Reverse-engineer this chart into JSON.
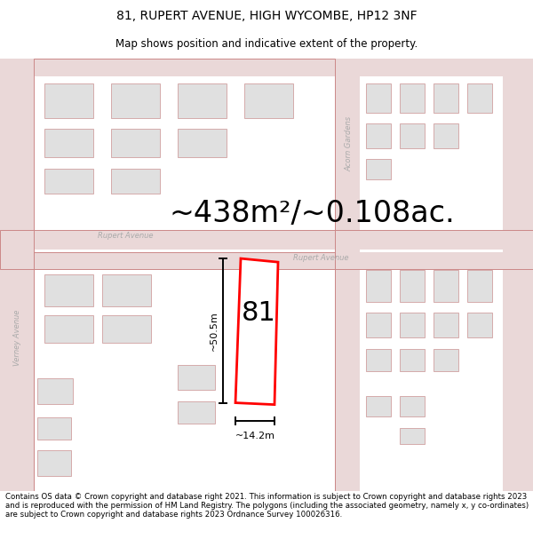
{
  "title_line1": "81, RUPERT AVENUE, HIGH WYCOMBE, HP12 3NF",
  "title_line2": "Map shows position and indicative extent of the property.",
  "area_text": "~438m²/~0.108ac.",
  "label_81": "81",
  "dim_height": "~50.5m",
  "dim_width": "~14.2m",
  "footer_text": "Contains OS data © Crown copyright and database right 2021. This information is subject to Crown copyright and database rights 2023 and is reproduced with the permission of HM Land Registry. The polygons (including the associated geometry, namely x, y co-ordinates) are subject to Crown copyright and database rights 2023 Ordnance Survey 100026316.",
  "bg_color": "#ffffff",
  "map_bg": "#f5eded",
  "highlight_color": "#ff0000",
  "dim_line_color": "#000000",
  "street_label_color": "#aaaaaa",
  "road_fill": "#ead8d8",
  "building_fill": "#e0e0e0",
  "building_edge": "#d0a0a0",
  "title_fontsize": 10,
  "subtitle_fontsize": 8.5,
  "area_fontsize": 24,
  "label_fontsize": 22,
  "dim_fontsize": 8,
  "footer_fontsize": 6.2
}
